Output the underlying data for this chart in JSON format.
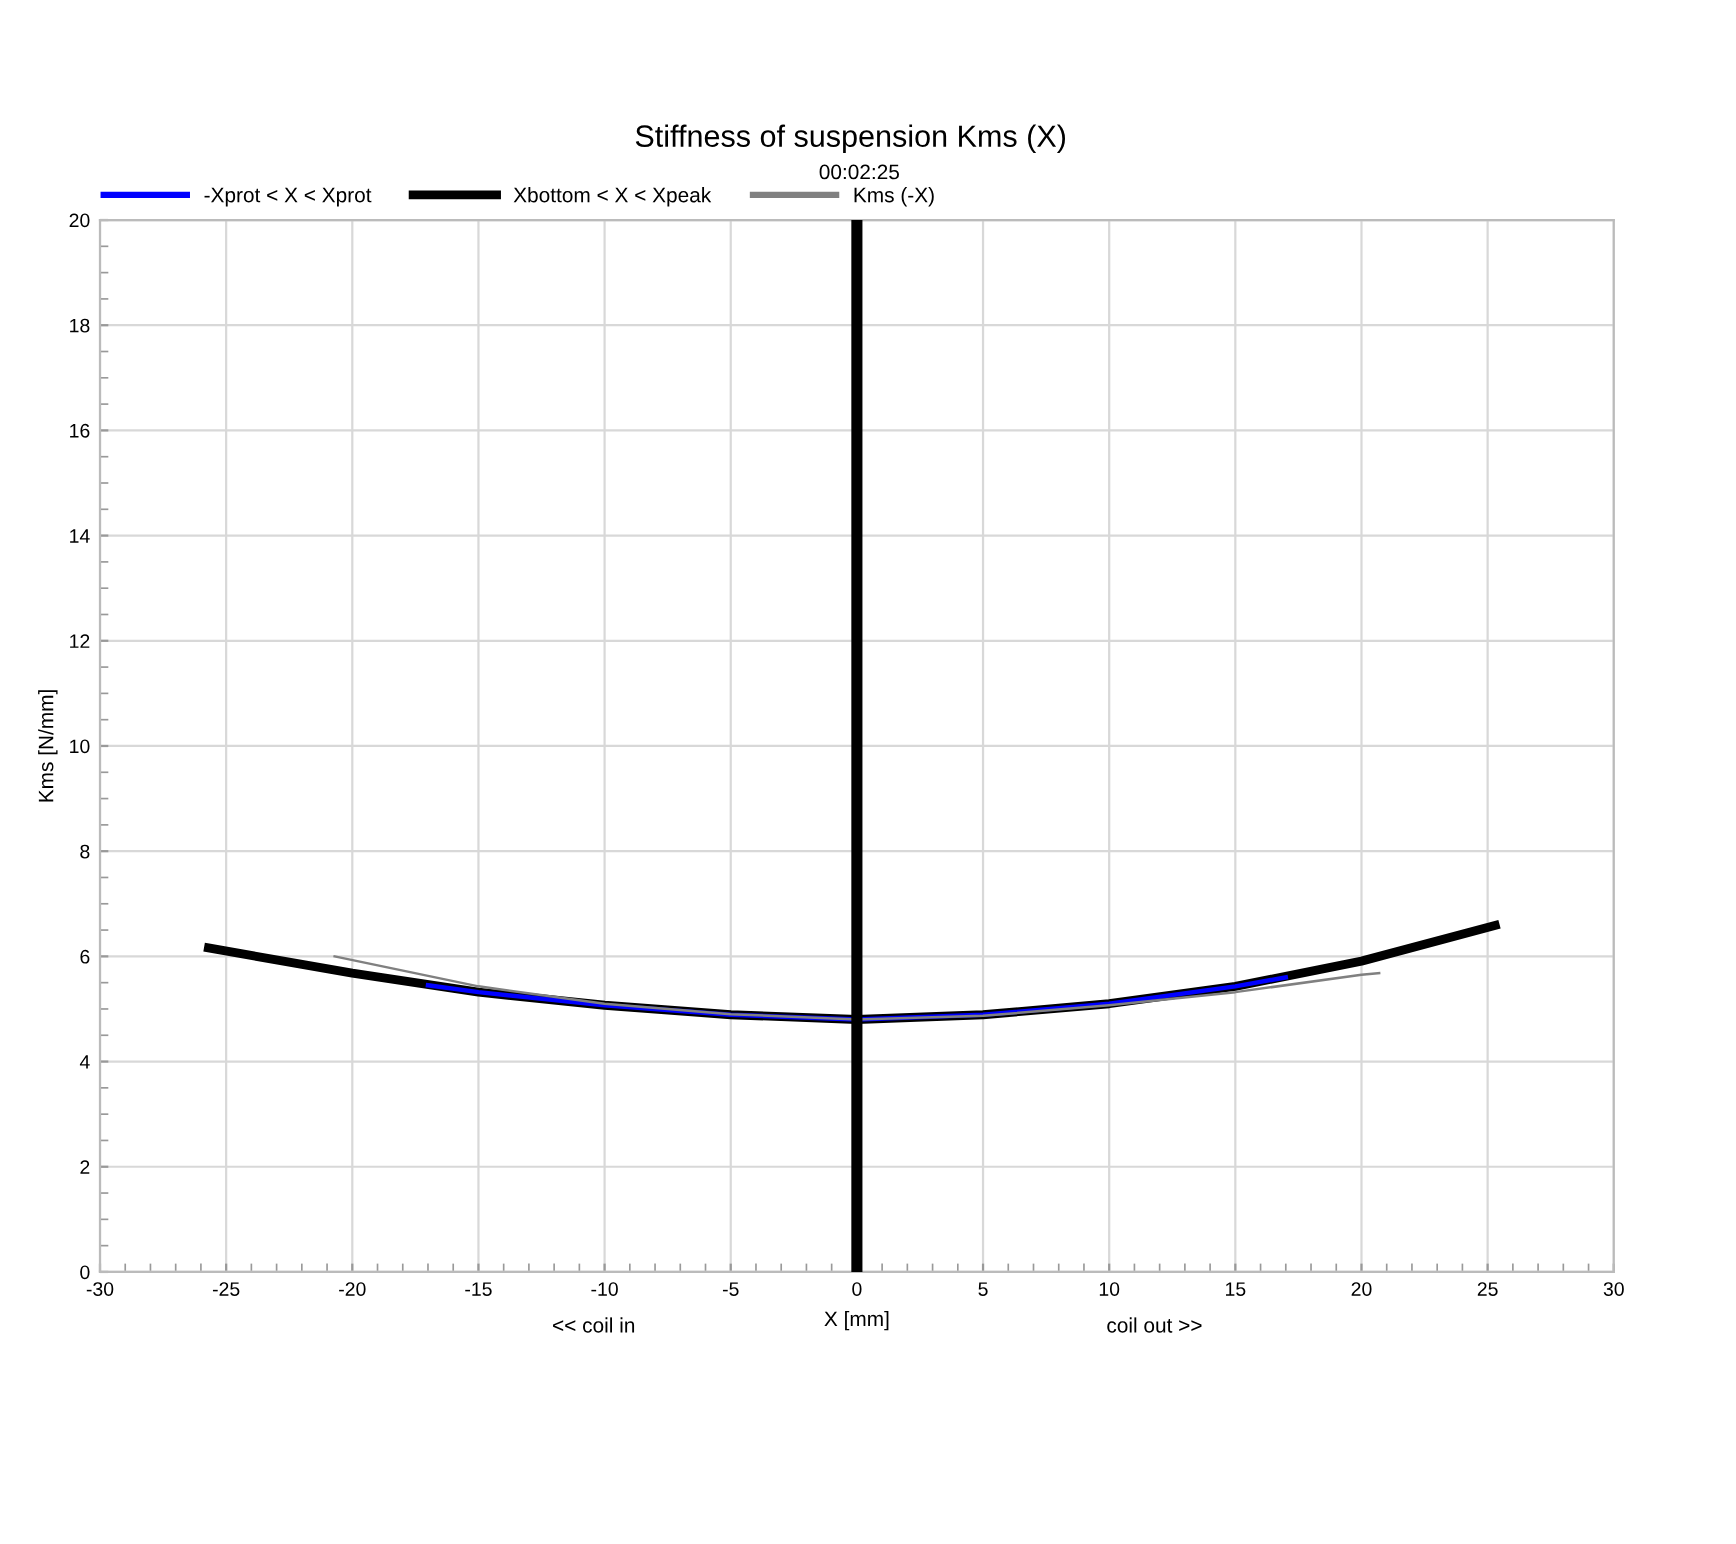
{
  "chart_data": {
    "type": "line",
    "title": "Stiffness of suspension Kms (X)",
    "subtitle": "00:02:25",
    "xlabel": "X [mm]",
    "ylabel": "Kms [N/mm]",
    "annotations": [
      "<< coil in",
      "coil out >>"
    ],
    "xlim": [
      -30,
      30
    ],
    "xticks": [
      -30,
      -25,
      -20,
      -15,
      -10,
      -5,
      0,
      5,
      10,
      15,
      20,
      25,
      30
    ],
    "ylim": [
      0,
      20
    ],
    "yticks": [
      0,
      2,
      4,
      6,
      8,
      10,
      12,
      14,
      16,
      18,
      20
    ],
    "grid": true,
    "legend": "top",
    "marker": "none",
    "ref_lines": [
      {
        "axis": "x",
        "value": 0,
        "label": null,
        "color": "#000000"
      }
    ],
    "series": [
      {
        "name": "Xbottom < X < Xpeak",
        "color": "#000000",
        "x": [
          -25.7,
          -20,
          -15,
          -10,
          -5,
          0,
          5,
          10,
          15,
          20,
          25.3
        ],
        "values": [
          6.16,
          5.68,
          5.32,
          5.07,
          4.89,
          4.8,
          4.89,
          5.1,
          5.43,
          5.91,
          6.59
        ]
      },
      {
        "name": "-Xprot < X < Xprot",
        "color": "#0000ff",
        "x": [
          -17,
          -15,
          -10,
          -5,
          0,
          5,
          10,
          15,
          17
        ],
        "values": [
          5.45,
          5.32,
          5.07,
          4.89,
          4.8,
          4.89,
          5.1,
          5.43,
          5.6
        ]
      },
      {
        "name": "Kms (-X)",
        "color": "#808080",
        "x": [
          -20.7,
          -15,
          -10,
          -5,
          0,
          5,
          10,
          15,
          20,
          20.7
        ],
        "values": [
          6.0,
          5.43,
          5.1,
          4.9,
          4.8,
          4.87,
          5.07,
          5.32,
          5.65,
          5.68
        ]
      }
    ]
  }
}
